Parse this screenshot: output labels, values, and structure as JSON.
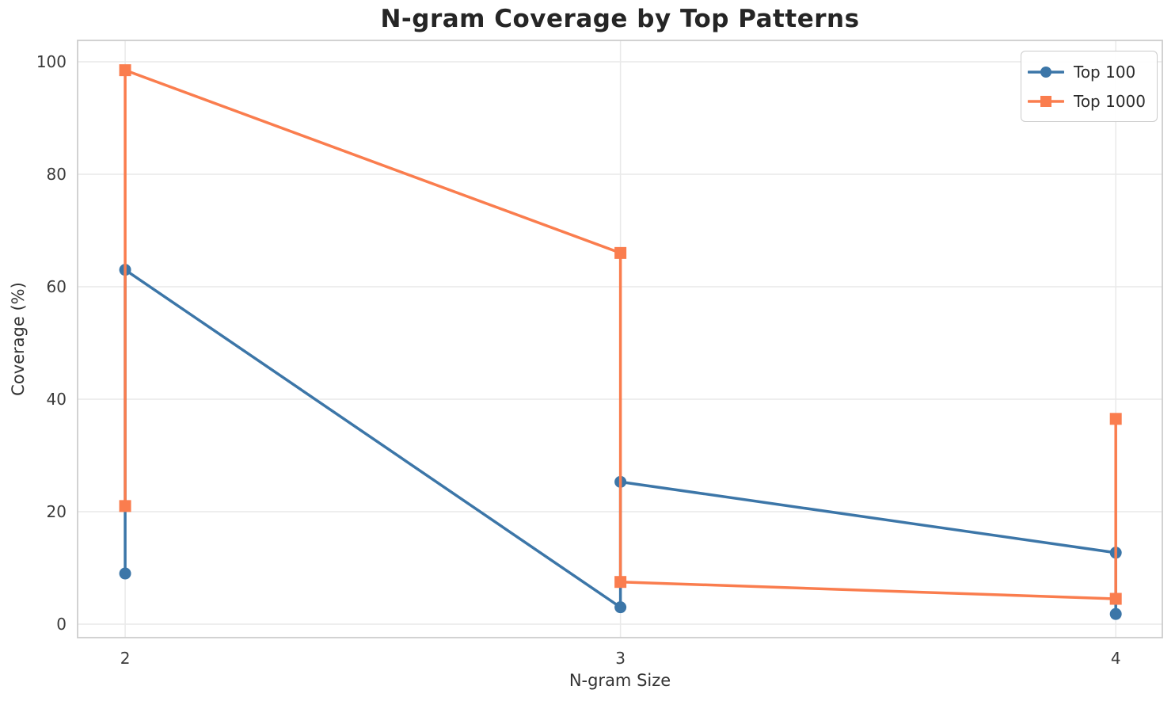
{
  "chart_data": {
    "type": "line",
    "title": "N-gram Coverage by Top Patterns",
    "xlabel": "N-gram Size",
    "ylabel": "Coverage (%)",
    "x_ticks": [
      "2",
      "3",
      "4"
    ],
    "x_tick_values": [
      2,
      3,
      4
    ],
    "y_ticks": [
      "0",
      "20",
      "40",
      "60",
      "80",
      "100"
    ],
    "y_tick_values": [
      0,
      20,
      40,
      60,
      80,
      100
    ],
    "xlim": [
      1.904,
      4.094
    ],
    "ylim": [
      -2.4,
      103.8
    ],
    "grid": true,
    "legend_position": "upper right",
    "series": [
      {
        "name": "Top 100",
        "color": "#3c76a8",
        "marker": "circle",
        "points": [
          [
            2,
            9
          ],
          [
            2,
            63
          ],
          [
            3,
            3
          ],
          [
            3,
            25.3
          ],
          [
            4,
            12.7
          ],
          [
            4,
            1.8
          ]
        ]
      },
      {
        "name": "Top 1000",
        "color": "#fa7d4e",
        "marker": "square",
        "points": [
          [
            2,
            21
          ],
          [
            2,
            98.5
          ],
          [
            3,
            66
          ],
          [
            3,
            7.5
          ],
          [
            4,
            4.5
          ],
          [
            4,
            36.5
          ]
        ]
      }
    ]
  }
}
